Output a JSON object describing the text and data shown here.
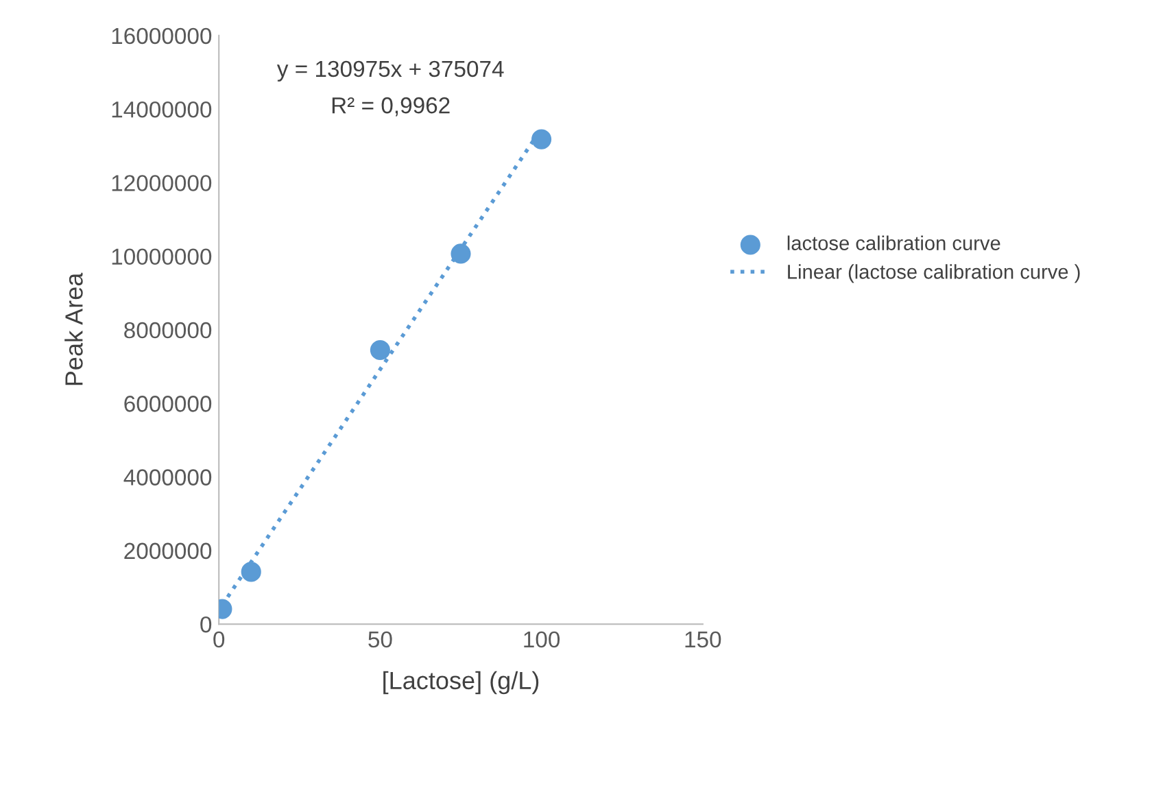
{
  "chart_data": {
    "type": "scatter",
    "xlabel": "[Lactose] (g/L)",
    "ylabel": "Peak Area",
    "x": [
      1,
      10,
      50,
      75,
      100
    ],
    "series": [
      {
        "name": "lactose calibration curve",
        "color": "#5b9bd5",
        "marker": "circle",
        "values": [
          410000,
          1420000,
          7450000,
          10070000,
          13180000
        ]
      },
      {
        "name": "Linear (lactose calibration curve )",
        "color": "#5b9bd5",
        "type": "line",
        "line_style": "dotted",
        "marker": "none",
        "x": [
          1,
          100
        ],
        "values": [
          510000,
          13470000
        ]
      }
    ],
    "annotations": [
      "y = 130975x + 375074",
      "R² = 0,9962"
    ],
    "xlim": [
      0,
      150
    ],
    "xticks": [
      0,
      50,
      100,
      150
    ],
    "ylim": [
      0,
      16000000
    ],
    "yticks": [
      0,
      2000000,
      4000000,
      6000000,
      8000000,
      10000000,
      12000000,
      14000000,
      16000000
    ],
    "grid": false,
    "legend": "right"
  }
}
